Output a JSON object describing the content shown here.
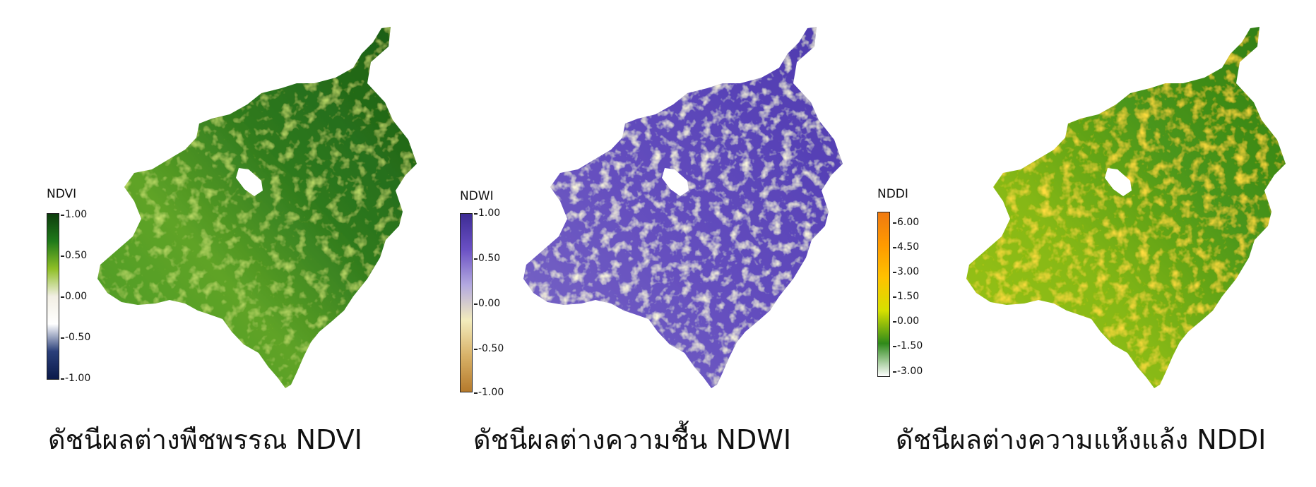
{
  "panels": [
    {
      "legend_title": "NDVI",
      "ticks": [
        "1.00",
        "0.50",
        "0.00",
        "-0.50",
        "-1.00"
      ],
      "colors": [
        "#0d3d0d",
        "#1f7a1a",
        "#8fbf26",
        "#f2efe4",
        "#ffffff",
        "#2a3f7a",
        "#0b1a4a"
      ],
      "caption": "ดัชนีผลต่างพืชพรรณ NDVI"
    },
    {
      "legend_title": "NDWI",
      "ticks": [
        "1.00",
        "0.50",
        "0.00",
        "-0.50",
        "-1.00"
      ],
      "colors": [
        "#3d2c94",
        "#6a50c4",
        "#b3a9e0",
        "#f3ecbc",
        "#d8b167",
        "#b57a2c"
      ],
      "caption": "ดัชนีผลต่างความชื้น NDWI"
    },
    {
      "legend_title": "NDDI",
      "ticks": [
        "6.00",
        "4.50",
        "3.00",
        "1.50",
        "0.00",
        "-1.50",
        "-3.00"
      ],
      "colors": [
        "#f07a10",
        "#ff9a00",
        "#ffc200",
        "#d6e000",
        "#2f8a1a",
        "#ffffff"
      ],
      "caption": "ดัชนีผลต่างความแห้งแล้ง NDDI"
    }
  ]
}
